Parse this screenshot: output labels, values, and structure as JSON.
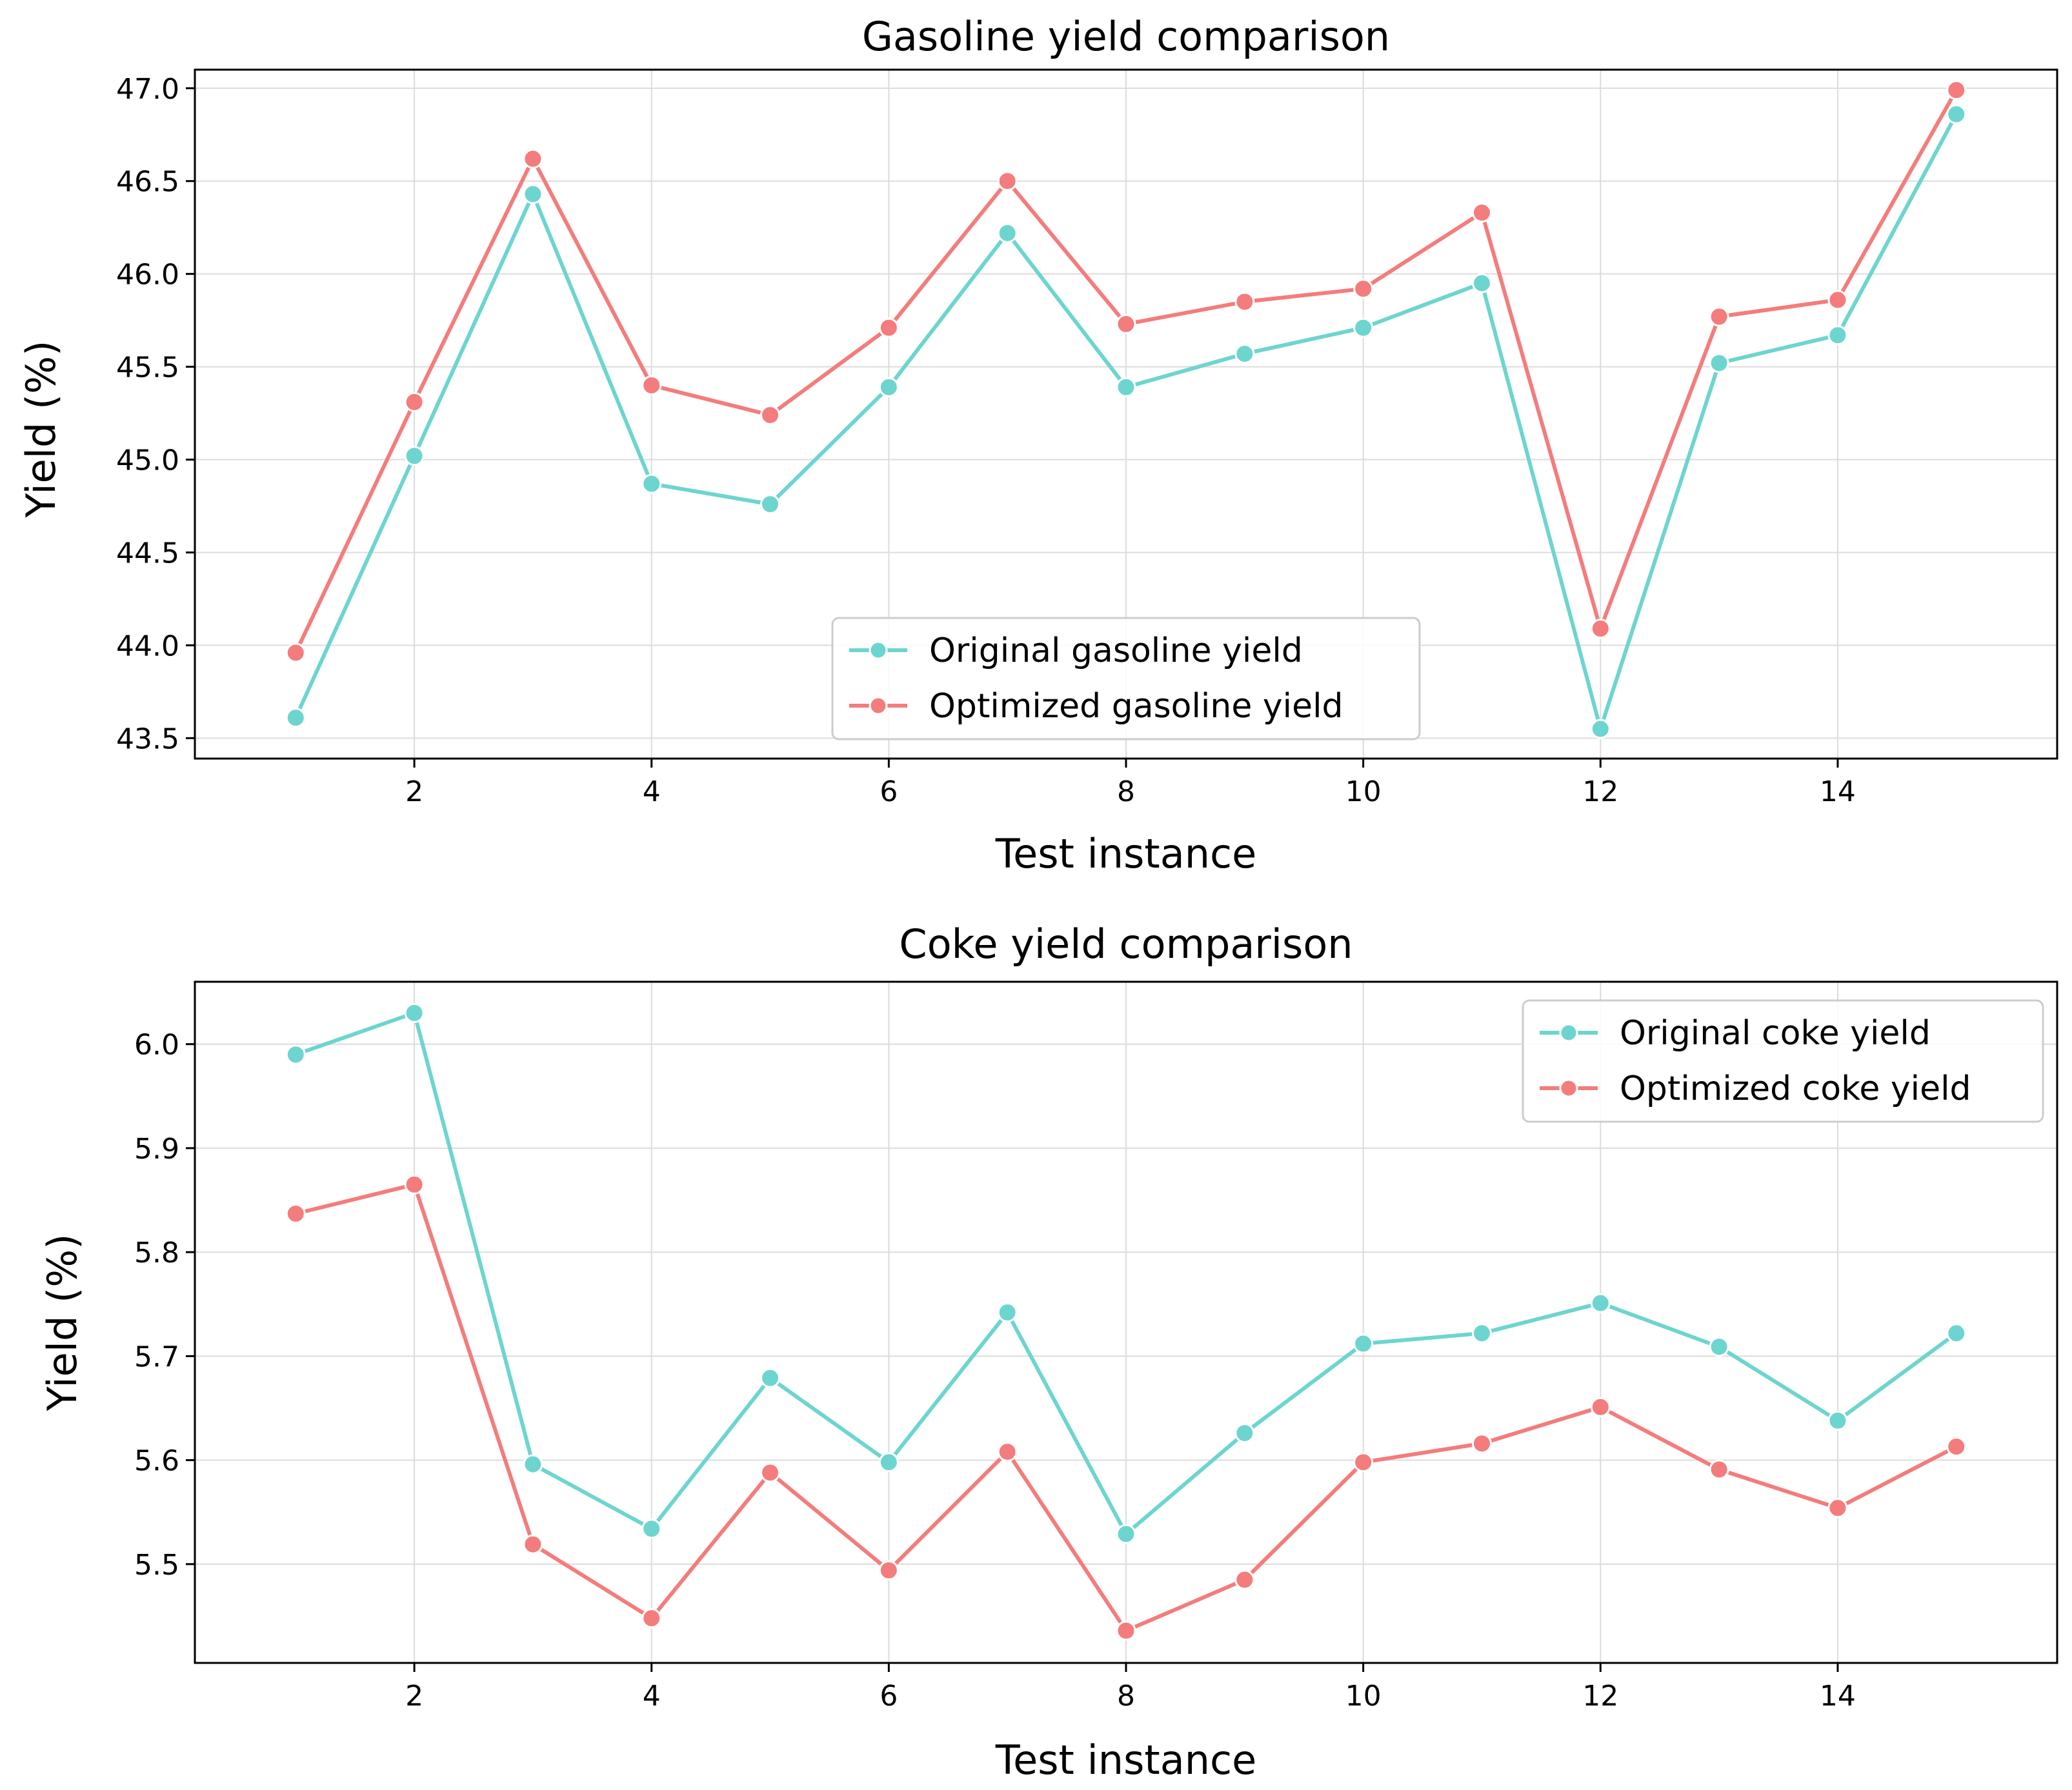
{
  "chart_data": [
    {
      "type": "line",
      "title": "Gasoline yield comparison",
      "xlabel": "Test instance",
      "ylabel": "Yield (%)",
      "x": [
        1,
        2,
        3,
        4,
        5,
        6,
        7,
        8,
        9,
        10,
        11,
        12,
        13,
        14,
        15
      ],
      "xticks": [
        2,
        4,
        6,
        8,
        10,
        12,
        14
      ],
      "xtick_labels": [
        "2",
        "4",
        "6",
        "8",
        "10",
        "12",
        "14"
      ],
      "yticks": [
        43.5,
        44.0,
        44.5,
        45.0,
        45.5,
        46.0,
        46.5,
        47.0
      ],
      "ytick_labels": [
        "43.5",
        "44.0",
        "44.5",
        "45.0",
        "45.5",
        "46.0",
        "46.5",
        "47.0"
      ],
      "xlim": [
        0.15,
        15.85
      ],
      "ylim": [
        43.39,
        47.1
      ],
      "grid": true,
      "legend_position": "lower-center",
      "series": [
        {
          "name": "Original gasoline yield",
          "color": "#6dd5cf",
          "values": [
            43.61,
            45.02,
            46.43,
            44.87,
            44.76,
            45.39,
            46.22,
            45.39,
            45.57,
            45.71,
            45.95,
            43.55,
            45.52,
            45.67,
            46.86
          ]
        },
        {
          "name": "Optimized gasoline yield",
          "color": "#f47c7c",
          "values": [
            43.96,
            45.31,
            46.62,
            45.4,
            45.24,
            45.71,
            46.5,
            45.73,
            45.85,
            45.92,
            46.33,
            44.09,
            45.77,
            45.86,
            46.99
          ]
        }
      ]
    },
    {
      "type": "line",
      "title": "Coke yield comparison",
      "xlabel": "Test instance",
      "ylabel": "Yield (%)",
      "x": [
        1,
        2,
        3,
        4,
        5,
        6,
        7,
        8,
        9,
        10,
        11,
        12,
        13,
        14,
        15
      ],
      "xticks": [
        2,
        4,
        6,
        8,
        10,
        12,
        14
      ],
      "xtick_labels": [
        "2",
        "4",
        "6",
        "8",
        "10",
        "12",
        "14"
      ],
      "yticks": [
        5.5,
        5.6,
        5.7,
        5.8,
        5.9,
        6.0
      ],
      "ytick_labels": [
        "5.5",
        "5.6",
        "5.7",
        "5.8",
        "5.9",
        "6.0"
      ],
      "xlim": [
        0.15,
        15.85
      ],
      "ylim": [
        5.405,
        6.06
      ],
      "grid": true,
      "legend_position": "upper-right",
      "series": [
        {
          "name": "Original coke yield",
          "color": "#6dd5cf",
          "values": [
            5.99,
            6.03,
            5.596,
            5.534,
            5.679,
            5.598,
            5.742,
            5.529,
            5.626,
            5.712,
            5.722,
            5.751,
            5.709,
            5.638,
            5.722
          ]
        },
        {
          "name": "Optimized coke yield",
          "color": "#f47c7c",
          "values": [
            5.837,
            5.865,
            5.519,
            5.448,
            5.588,
            5.494,
            5.608,
            5.436,
            5.485,
            5.598,
            5.616,
            5.651,
            5.591,
            5.554,
            5.613
          ]
        }
      ]
    }
  ]
}
